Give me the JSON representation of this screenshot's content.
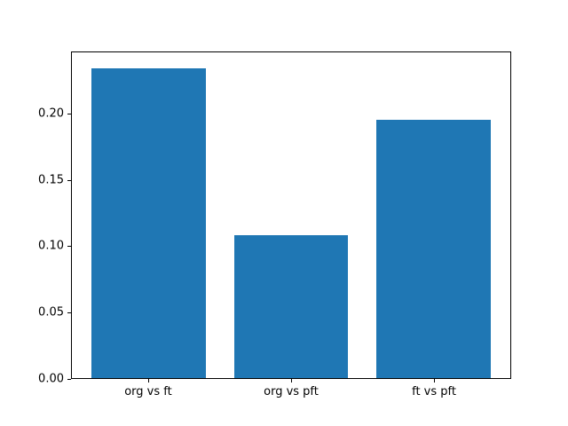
{
  "chart_data": {
    "type": "bar",
    "title": "",
    "xlabel": "",
    "ylabel": "",
    "categories": [
      "org vs ft",
      "org vs pft",
      "ft vs pft"
    ],
    "values": [
      0.235,
      0.108,
      0.196
    ],
    "ylim": [
      0,
      0.2468
    ],
    "xlim": [
      -0.54,
      2.54
    ],
    "bar_width": 0.8,
    "yticks": [
      0.0,
      0.05,
      0.1,
      0.15,
      0.2
    ],
    "ytick_labels": [
      "0.00",
      "0.05",
      "0.10",
      "0.15",
      "0.20"
    ],
    "bar_color": "#1f77b4",
    "background_color": "#ffffff",
    "grid": false,
    "legend": null
  }
}
